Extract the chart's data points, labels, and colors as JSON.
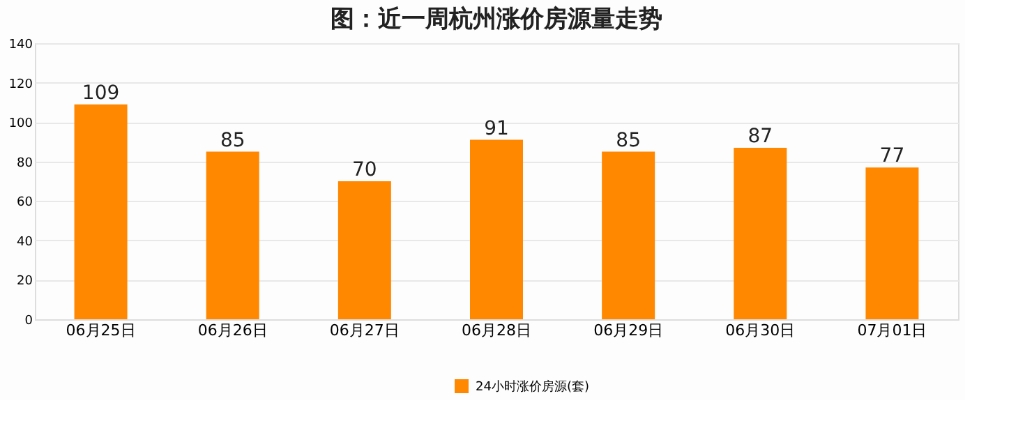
{
  "chart_data": {
    "type": "bar",
    "title": "图：近一周杭州涨价房源量走势",
    "categories": [
      "06月25日",
      "06月26日",
      "06月27日",
      "06月28日",
      "06月29日",
      "06月30日",
      "07月01日"
    ],
    "series": [
      {
        "name": "24小时涨价房源(套)",
        "color": "#ff8800",
        "values": [
          109,
          85,
          70,
          91,
          85,
          87,
          77
        ]
      }
    ],
    "ylim": [
      0,
      140
    ],
    "yticks": [
      0,
      20,
      40,
      60,
      80,
      100,
      120,
      140
    ],
    "grid": "y",
    "legend": "bottom",
    "data_labels": true
  }
}
